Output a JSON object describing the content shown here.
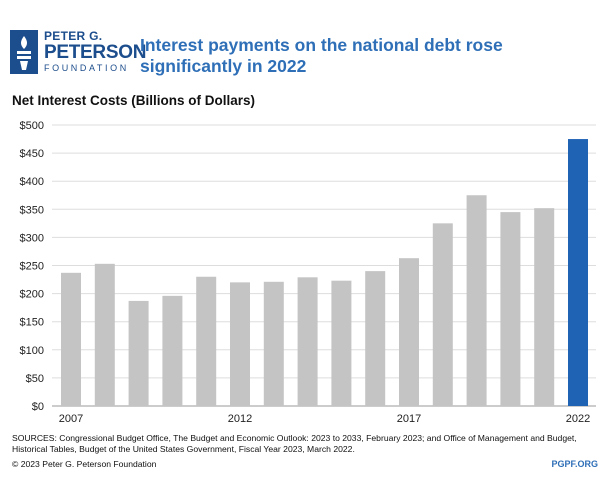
{
  "logo": {
    "line1": "PETER G.",
    "line2": "PETERSON",
    "line3": "FOUNDATION"
  },
  "title": "Interest payments on the national debt rose significantly in 2022",
  "subtitle": "Net Interest Costs (Billions of Dollars)",
  "colors": {
    "bar": "#c4c4c4",
    "highlight": "#1f63b4",
    "grid": "#dddddd",
    "title": "#2e6fb7"
  },
  "chart_data": {
    "type": "bar",
    "x": [
      2007,
      2008,
      2009,
      2010,
      2011,
      2012,
      2013,
      2014,
      2015,
      2016,
      2017,
      2018,
      2019,
      2020,
      2021,
      2022
    ],
    "values": [
      237,
      253,
      187,
      196,
      230,
      220,
      221,
      229,
      223,
      240,
      263,
      325,
      375,
      345,
      352,
      475
    ],
    "highlight_index": 15,
    "yticks": [
      "$500",
      "$450",
      "$400",
      "$350",
      "$300",
      "$250",
      "$200",
      "$150",
      "$100",
      "$50",
      "$0"
    ],
    "xticks": [
      "2007",
      "2012",
      "2017",
      "2022"
    ],
    "ylim": [
      0,
      500
    ],
    "grid": true
  },
  "footer": {
    "sources": "SOURCES: Congressional Budget Office, The Budget and Economic Outlook: 2023 to 2033, February 2023; and Office of Management and Budget, Historical Tables, Budget of the United States Government, Fiscal Year 2023, March 2022.",
    "copyright": "© 2023 Peter G. Peterson Foundation",
    "site": "PGPF.ORG"
  }
}
